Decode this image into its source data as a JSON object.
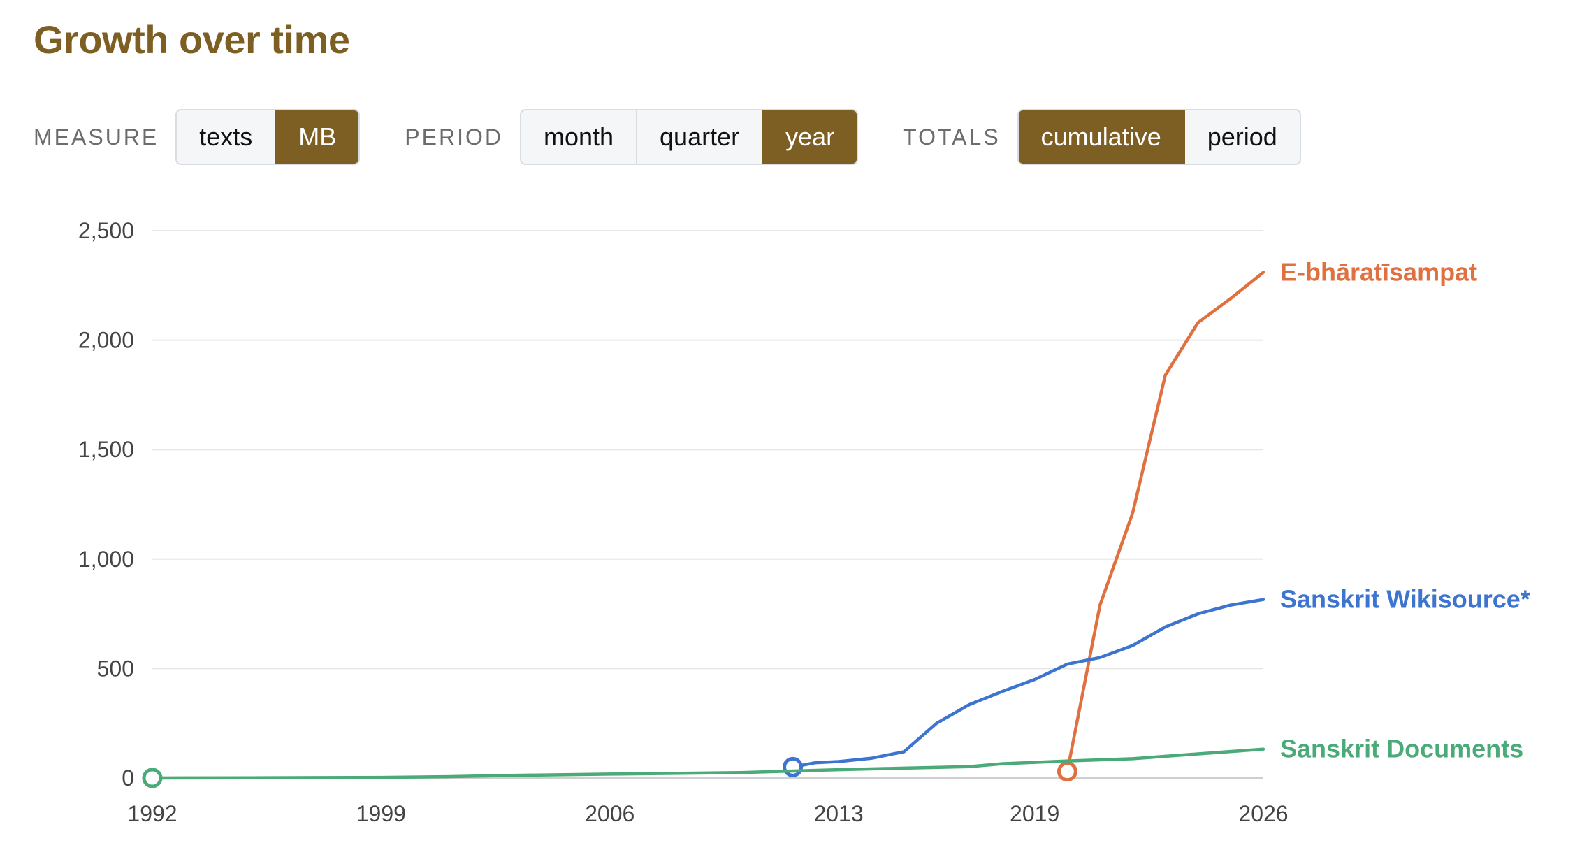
{
  "title": "Growth over time",
  "controls": [
    {
      "label": "MEASURE",
      "name": "measure",
      "options": [
        {
          "label": "texts",
          "active": false
        },
        {
          "label": "MB",
          "active": true
        }
      ]
    },
    {
      "label": "PERIOD",
      "name": "period",
      "options": [
        {
          "label": "month",
          "active": false
        },
        {
          "label": "quarter",
          "active": false
        },
        {
          "label": "year",
          "active": true
        }
      ]
    },
    {
      "label": "TOTALS",
      "name": "totals",
      "options": [
        {
          "label": "cumulative",
          "active": true
        },
        {
          "label": "period",
          "active": false
        }
      ]
    }
  ],
  "colors": {
    "accent": "#7d5f24",
    "orange": "#e07040",
    "blue": "#3d74cf",
    "green": "#4aaa78"
  },
  "chart_data": {
    "type": "line",
    "xlim": [
      1992,
      2026
    ],
    "ylim": [
      0,
      2500
    ],
    "xticks": [
      1992,
      1999,
      2006,
      2013,
      2019,
      2026
    ],
    "yticks": [
      0,
      500,
      1000,
      1500,
      2000,
      2500
    ],
    "ytick_labels": [
      "0",
      "500",
      "1,000",
      "1,500",
      "2,000",
      "2,500"
    ],
    "grid": true,
    "series": [
      {
        "name": "E-bhāratīsampat",
        "color": "#e07040",
        "x": [
          2020,
          2021,
          2022,
          2023,
          2024,
          2025,
          2026
        ],
        "y": [
          30,
          790,
          1210,
          1840,
          2080,
          2190,
          2310
        ]
      },
      {
        "name": "Sanskrit Wikisource*",
        "color": "#3d74cf",
        "x": [
          2011.6,
          2012.3,
          2013,
          2014,
          2015,
          2016,
          2017,
          2018,
          2019,
          2020,
          2021,
          2022,
          2023,
          2024,
          2025,
          2026
        ],
        "y": [
          50,
          70,
          75,
          90,
          120,
          250,
          335,
          395,
          450,
          520,
          550,
          605,
          690,
          750,
          790,
          815
        ]
      },
      {
        "name": "Sanskrit Documents",
        "color": "#4aaa78",
        "x": [
          1992,
          1995,
          1999,
          2001,
          2003,
          2006,
          2010,
          2013,
          2015,
          2017,
          2018,
          2020,
          2022,
          2024,
          2026
        ],
        "y": [
          0,
          1,
          3,
          6,
          12,
          18,
          25,
          38,
          45,
          52,
          65,
          78,
          88,
          110,
          132
        ]
      }
    ]
  }
}
